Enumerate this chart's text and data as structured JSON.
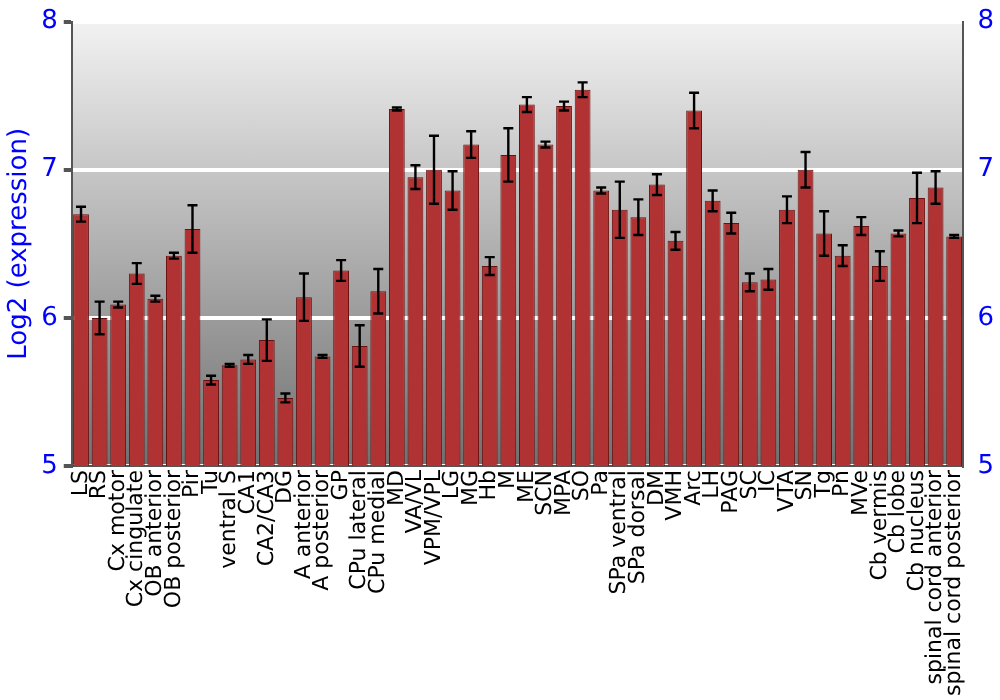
{
  "chart_data": {
    "type": "bar",
    "ylabel": "Log2 (expression)",
    "categories": [
      "LS",
      "RS",
      "Cx motor",
      "Cx cingulate",
      "OB anterior",
      "OB posterior",
      "Pir",
      "Tu",
      "ventral S",
      "CA1",
      "CA2/CA3",
      "DG",
      "A anterior",
      "A posterior",
      "GP",
      "CPu lateral",
      "CPu medial",
      "MD",
      "VA/VL",
      "VPM/VPL",
      "LG",
      "MG",
      "Hb",
      "M",
      "ME",
      "SCN",
      "MPA",
      "SO",
      "Pa",
      "SPa ventral",
      "SPa dorsal",
      "DM",
      "VMH",
      "Arc",
      "LH",
      "PAG",
      "SC",
      "IC",
      "VTA",
      "SN",
      "Tg",
      "Pn",
      "MVe",
      "Cb vermis",
      "Cb lobe",
      "Cb nucleus",
      "spinal cord anterior",
      "spinal cord posterior"
    ],
    "values": [
      6.7,
      6.0,
      6.09,
      6.3,
      6.13,
      6.42,
      6.6,
      5.58,
      5.68,
      5.72,
      5.85,
      5.46,
      6.14,
      5.74,
      6.32,
      5.81,
      6.18,
      7.41,
      6.95,
      7.0,
      6.86,
      7.17,
      6.35,
      7.1,
      7.44,
      7.17,
      7.43,
      7.54,
      6.86,
      6.73,
      6.68,
      6.9,
      6.52,
      7.4,
      6.79,
      6.64,
      6.24,
      6.26,
      6.73,
      7.0,
      6.57,
      6.42,
      6.62,
      6.35,
      6.57,
      6.81,
      6.88,
      6.55
    ],
    "errors": [
      0.05,
      0.11,
      0.02,
      0.07,
      0.02,
      0.02,
      0.16,
      0.03,
      0.01,
      0.03,
      0.14,
      0.03,
      0.16,
      0.01,
      0.07,
      0.14,
      0.15,
      0.01,
      0.08,
      0.23,
      0.13,
      0.09,
      0.06,
      0.18,
      0.05,
      0.02,
      0.03,
      0.05,
      0.02,
      0.19,
      0.12,
      0.07,
      0.06,
      0.12,
      0.07,
      0.07,
      0.06,
      0.07,
      0.09,
      0.12,
      0.15,
      0.07,
      0.06,
      0.1,
      0.02,
      0.17,
      0.11,
      0.01
    ],
    "color": "#b03232",
    "ylim": [
      5,
      8
    ],
    "yticks": [
      5,
      6,
      7,
      8
    ],
    "y2lim": [
      5,
      8
    ],
    "y2ticks": [
      5,
      6,
      7,
      8
    ],
    "grid": "y",
    "legend": false
  }
}
